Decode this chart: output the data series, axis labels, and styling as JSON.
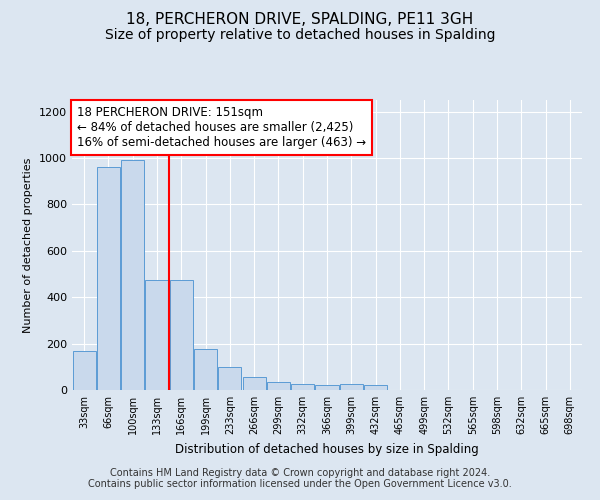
{
  "title": "18, PERCHERON DRIVE, SPALDING, PE11 3GH",
  "subtitle": "Size of property relative to detached houses in Spalding",
  "xlabel": "Distribution of detached houses by size in Spalding",
  "ylabel": "Number of detached properties",
  "categories": [
    "33sqm",
    "66sqm",
    "100sqm",
    "133sqm",
    "166sqm",
    "199sqm",
    "233sqm",
    "266sqm",
    "299sqm",
    "332sqm",
    "366sqm",
    "399sqm",
    "432sqm",
    "465sqm",
    "499sqm",
    "532sqm",
    "565sqm",
    "598sqm",
    "632sqm",
    "665sqm",
    "698sqm"
  ],
  "values": [
    170,
    960,
    990,
    475,
    475,
    175,
    100,
    55,
    35,
    25,
    20,
    25,
    20,
    0,
    0,
    0,
    0,
    0,
    0,
    0,
    0
  ],
  "bar_color": "#c9d9ec",
  "bar_edge_color": "#5b9bd5",
  "red_line_index": 3.5,
  "red_line_label": "18 PERCHERON DRIVE: 151sqm",
  "annotation_line1": "← 84% of detached houses are smaller (2,425)",
  "annotation_line2": "16% of semi-detached houses are larger (463) →",
  "ylim": [
    0,
    1250
  ],
  "yticks": [
    0,
    200,
    400,
    600,
    800,
    1000,
    1200
  ],
  "footer_line1": "Contains HM Land Registry data © Crown copyright and database right 2024.",
  "footer_line2": "Contains public sector information licensed under the Open Government Licence v3.0.",
  "background_color": "#dce6f1",
  "plot_bg_color": "#dce6f1",
  "grid_color": "#ffffff",
  "title_fontsize": 11,
  "subtitle_fontsize": 10,
  "annotation_fontsize": 8.5,
  "footer_fontsize": 7
}
